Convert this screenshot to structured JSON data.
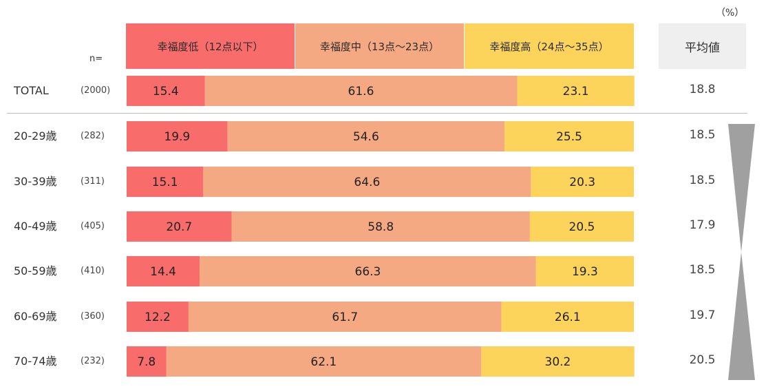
{
  "unit_label": "（%）",
  "n_label": "n=",
  "legend": [
    {
      "label": "幸福度低（12点以下）",
      "color": "#f86c6b"
    },
    {
      "label": "幸福度中（13点～23点）",
      "color": "#f5a982"
    },
    {
      "label": "幸福度高（24点～35点）",
      "color": "#fcd45c"
    }
  ],
  "avg_header": "平均値",
  "rows": [
    {
      "label": "TOTAL",
      "n": "(2000)",
      "avg": "18.8"
    },
    {
      "label": "20-29歳",
      "n": "(282)",
      "avg": "18.5"
    },
    {
      "label": "30-39歳",
      "n": "(311)",
      "avg": "18.5"
    },
    {
      "label": "40-49歳",
      "n": "(405)",
      "avg": "17.9"
    },
    {
      "label": "50-59歳",
      "n": "(410)",
      "avg": "18.5"
    },
    {
      "label": "60-69歳",
      "n": "(360)",
      "avg": "19.7"
    },
    {
      "label": "70-74歳",
      "n": "(232)",
      "avg": "20.5"
    }
  ],
  "chart_data": {
    "type": "bar",
    "orientation": "horizontal",
    "stacked": true,
    "normalized": true,
    "categories": [
      "TOTAL",
      "20-29歳",
      "30-39歳",
      "40-49歳",
      "50-59歳",
      "60-69歳",
      "70-74歳"
    ],
    "series": [
      {
        "name": "幸福度低（12点以下）",
        "color": "#f86c6b",
        "values": [
          15.4,
          19.9,
          15.1,
          20.7,
          14.4,
          12.2,
          7.8
        ]
      },
      {
        "name": "幸福度中（13点～23点）",
        "color": "#f5a982",
        "values": [
          61.6,
          54.6,
          64.6,
          58.8,
          66.3,
          61.7,
          62.1
        ]
      },
      {
        "name": "幸福度高（24点～35点）",
        "color": "#fcd45c",
        "values": [
          23.1,
          25.5,
          20.3,
          20.5,
          19.3,
          26.1,
          30.2
        ]
      }
    ],
    "xlim": [
      0,
      100
    ],
    "legend_position": "top",
    "grid": false,
    "trend_marker_color": "#a0a0a0"
  }
}
